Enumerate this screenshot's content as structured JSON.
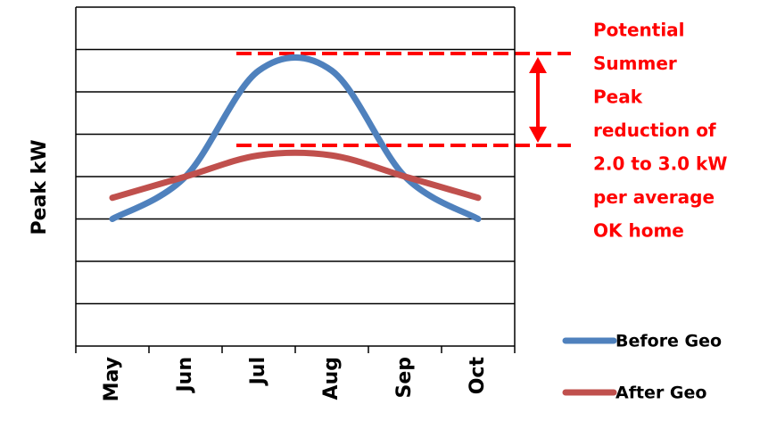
{
  "chart_data": {
    "type": "line",
    "y_label": "Peak kW",
    "categories": [
      "May",
      "Jun",
      "Jul",
      "Aug",
      "Sep",
      "Oct"
    ],
    "series": [
      {
        "name": "Before Geo",
        "color": "#4f81bd",
        "values": [
          3.0,
          4.0,
          6.5,
          6.5,
          4.0,
          3.0
        ]
      },
      {
        "name": "After Geo",
        "color": "#c0504d",
        "values": [
          3.5,
          4.0,
          4.5,
          4.5,
          4.0,
          3.5
        ]
      }
    ],
    "ylim": [
      0,
      8
    ],
    "yticks": [
      0,
      1,
      2,
      3,
      4,
      5,
      6,
      7,
      8
    ],
    "grid": true,
    "smooth": true,
    "annotation": {
      "color": "#ff0000",
      "lines": [
        "Potential",
        "Summer",
        "Peak",
        "reduction of",
        "2.0 to 3.0 kW",
        "per average",
        "OK home"
      ]
    }
  }
}
